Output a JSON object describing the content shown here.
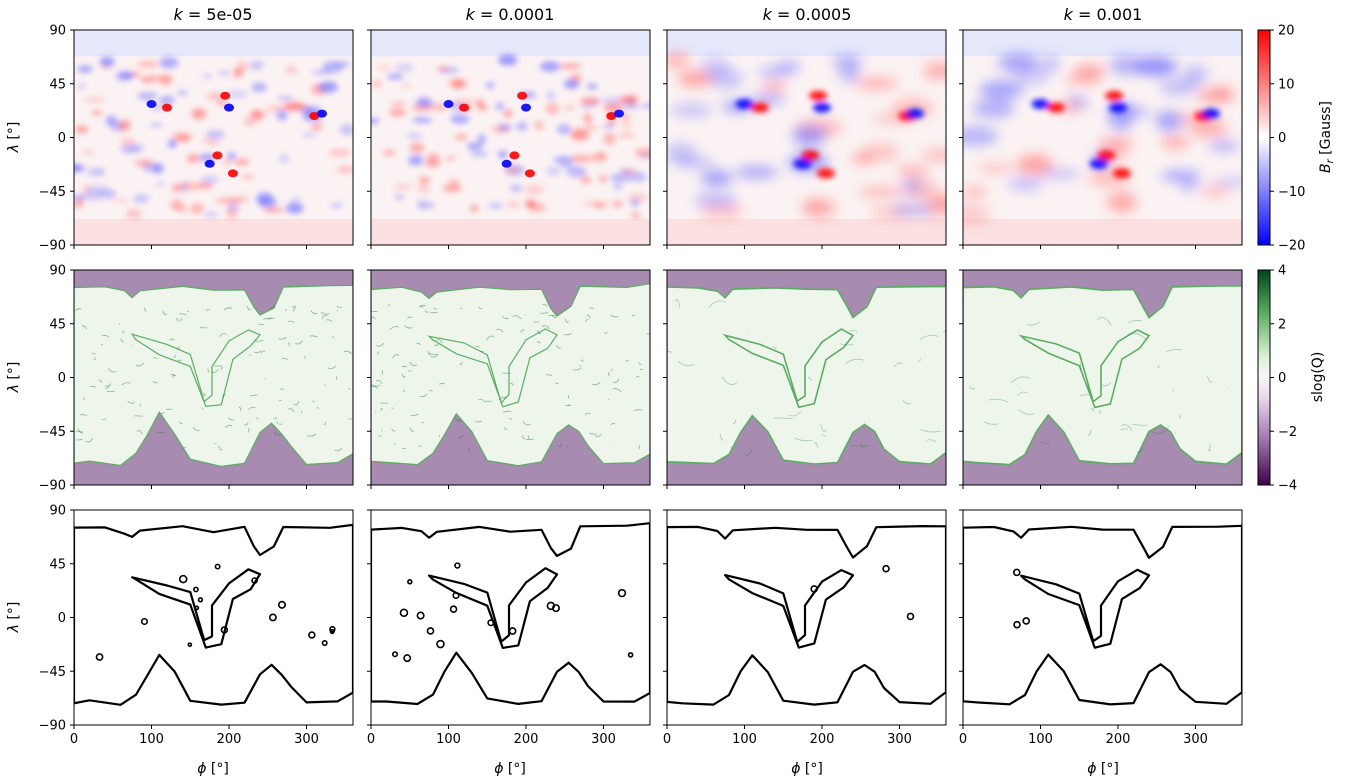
{
  "chart_data": {
    "type": "heatmap",
    "columns": [
      {
        "title_prefix": "k = ",
        "k": "5e-05"
      },
      {
        "title_prefix": "k = ",
        "k": "0.0001"
      },
      {
        "title_prefix": "k = ",
        "k": "0.0005"
      },
      {
        "title_prefix": "k = ",
        "k": "0.001"
      }
    ],
    "rows": [
      {
        "quantity": "B_r",
        "colorbar_label": "B_r [Gauss]",
        "colormap": "bwr",
        "range": [
          -20,
          20
        ],
        "colorbar_ticks": [
          "20",
          "10",
          "0",
          "−10",
          "−20"
        ]
      },
      {
        "quantity": "slog(Q)",
        "colorbar_label": "slog(Q)",
        "colormap": "PRGn",
        "range": [
          -4,
          4
        ],
        "colorbar_ticks": [
          "4",
          "2",
          "0",
          "−2",
          "−4"
        ]
      },
      {
        "quantity": "open/closed boundary",
        "colorbar_label": "",
        "colormap": "none"
      }
    ],
    "xlabel": "ϕ [°]",
    "ylabel": "λ [°]",
    "xlim": [
      0,
      360
    ],
    "x_ticks": [
      "0",
      "100",
      "200",
      "300"
    ],
    "row1_y_ticks": [
      "90",
      "45",
      "0",
      "−45",
      "−90"
    ],
    "rows23_y_ticks": [
      "90",
      "45",
      "0",
      "−45",
      "−90"
    ],
    "colors": {
      "positive": "#ff0000",
      "negative": "#0000ff",
      "green": "#1b7837",
      "purple": "#762a83"
    }
  }
}
